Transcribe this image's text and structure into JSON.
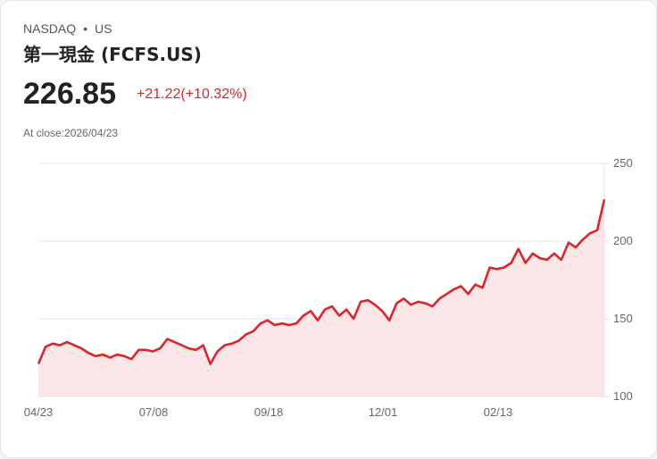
{
  "header": {
    "exchange": "NASDAQ",
    "separator": "•",
    "market": "US",
    "title": "第一現金 (FCFS.US)",
    "price": "226.85",
    "change": "+21.22(+10.32%)",
    "close_label": "At close:2026/04/23"
  },
  "colors": {
    "line": "#d8262c",
    "fill": "#fbe6e7",
    "change": "#d8262c"
  },
  "chart_data": {
    "type": "area",
    "title": "",
    "xlabel": "",
    "ylabel": "",
    "ylim": [
      100,
      250
    ],
    "y_ticks": [
      250,
      200,
      150,
      100
    ],
    "x_tick_labels": [
      "04/23",
      "07/08",
      "09/18",
      "12/01",
      "02/13"
    ],
    "grid": true,
    "legend": "none",
    "series": [
      {
        "name": "FCFS.US",
        "values": [
          121,
          132,
          134,
          133,
          135,
          133,
          131,
          128,
          126,
          127,
          125,
          127,
          126,
          124,
          130,
          130,
          129,
          131,
          137,
          135,
          133,
          131,
          130,
          133,
          121,
          129,
          133,
          134,
          136,
          140,
          142,
          147,
          149,
          146,
          147,
          146,
          147,
          152,
          155,
          149,
          156,
          158,
          152,
          156,
          150,
          161,
          162,
          159,
          155,
          149,
          160,
          163,
          159,
          161,
          160,
          158,
          163,
          166,
          169,
          171,
          166,
          172,
          170,
          183,
          182,
          183,
          186,
          195,
          186,
          192,
          189,
          188,
          192,
          188,
          199,
          196,
          201,
          205,
          207,
          226.85
        ]
      }
    ]
  },
  "axis": {
    "y": [
      "250",
      "200",
      "150",
      "100"
    ],
    "x": [
      "04/23",
      "07/08",
      "09/18",
      "12/01",
      "02/13"
    ]
  }
}
